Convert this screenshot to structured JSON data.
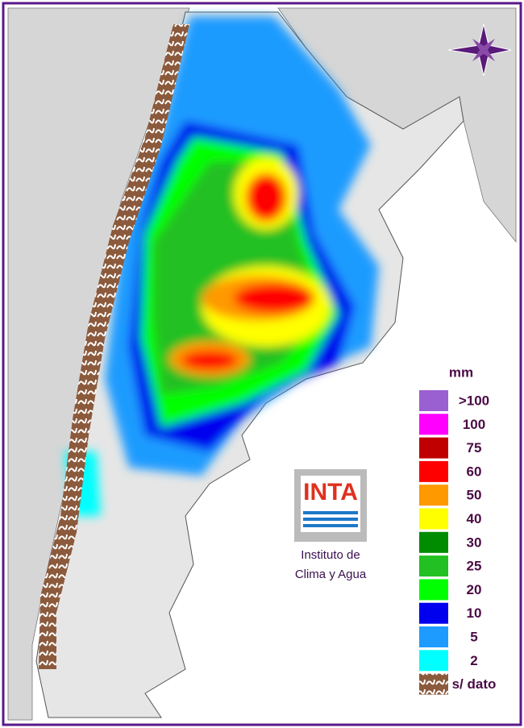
{
  "legend": {
    "title": "mm",
    "items": [
      {
        "label": ">100",
        "color": "#9a5fd0"
      },
      {
        "label": "100",
        "color": "#ff00ff"
      },
      {
        "label": "75",
        "color": "#c00000"
      },
      {
        "label": "60",
        "color": "#ff0000"
      },
      {
        "label": "50",
        "color": "#ff9900"
      },
      {
        "label": "40",
        "color": "#ffff00"
      },
      {
        "label": "30",
        "color": "#008c00"
      },
      {
        "label": "25",
        "color": "#22c022"
      },
      {
        "label": "20",
        "color": "#00ff00"
      },
      {
        "label": "10",
        "color": "#0000ee"
      },
      {
        "label": "5",
        "color": "#1e9bff"
      },
      {
        "label": "2",
        "color": "#00ffff"
      },
      {
        "label": "s/ dato",
        "color": "#8b5a3c"
      }
    ]
  },
  "logo": {
    "text": "INTA",
    "caption": [
      "Instituto de",
      "Clima y Agua"
    ]
  }
}
